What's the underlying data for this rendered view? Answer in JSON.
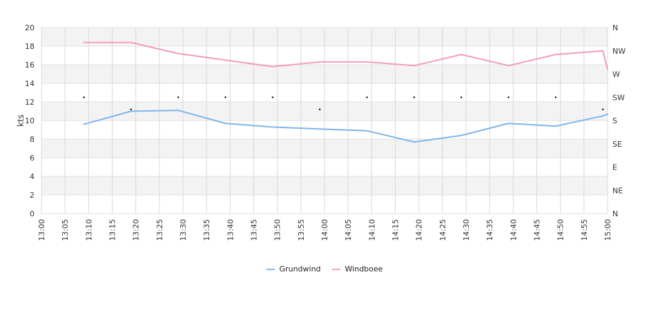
{
  "chart_data": {
    "type": "line",
    "ylabel": "kts",
    "ylim": [
      0,
      20
    ],
    "yticks": [
      "0",
      "2",
      "4",
      "6",
      "8",
      "10",
      "12",
      "14",
      "16",
      "18",
      "20"
    ],
    "right_ticks": [
      "N",
      "NE",
      "E",
      "SE",
      "S",
      "SW",
      "W",
      "NW",
      "N"
    ],
    "x_ticks": [
      "13:00",
      "13:05",
      "13:10",
      "13:15",
      "13:20",
      "13:25",
      "13:30",
      "13:35",
      "13:40",
      "13:45",
      "13:50",
      "13:55",
      "14:00",
      "14:05",
      "14:10",
      "14:15",
      "14:20",
      "14:25",
      "14:30",
      "14:35",
      "14:40",
      "14:45",
      "14:50",
      "14:55",
      "15:00"
    ],
    "x_minutes": [
      9,
      19,
      29,
      39,
      49,
      59,
      69,
      79,
      89,
      99,
      109,
      119,
      120
    ],
    "series": [
      {
        "name": "Grundwind",
        "color": "#7cb5ec",
        "values": [
          9.6,
          11.0,
          11.1,
          9.7,
          9.3,
          9.1,
          8.9,
          7.7,
          8.4,
          9.7,
          9.4,
          10.5,
          10.7
        ]
      },
      {
        "name": "Windboee",
        "color": "#f49ac1",
        "values": [
          18.4,
          18.4,
          17.2,
          16.5,
          15.8,
          16.3,
          16.3,
          15.9,
          17.1,
          15.9,
          17.1,
          17.5,
          15.5
        ]
      }
    ],
    "direction_x_minutes": [
      9,
      19,
      29,
      39,
      49,
      59,
      69,
      79,
      89,
      99,
      109,
      119
    ],
    "direction_values": [
      12.5,
      11.2,
      12.5,
      12.5,
      12.5,
      11.2,
      12.5,
      12.5,
      12.5,
      12.5,
      12.5,
      11.2
    ],
    "grid": true,
    "legend": "bottom-center"
  }
}
